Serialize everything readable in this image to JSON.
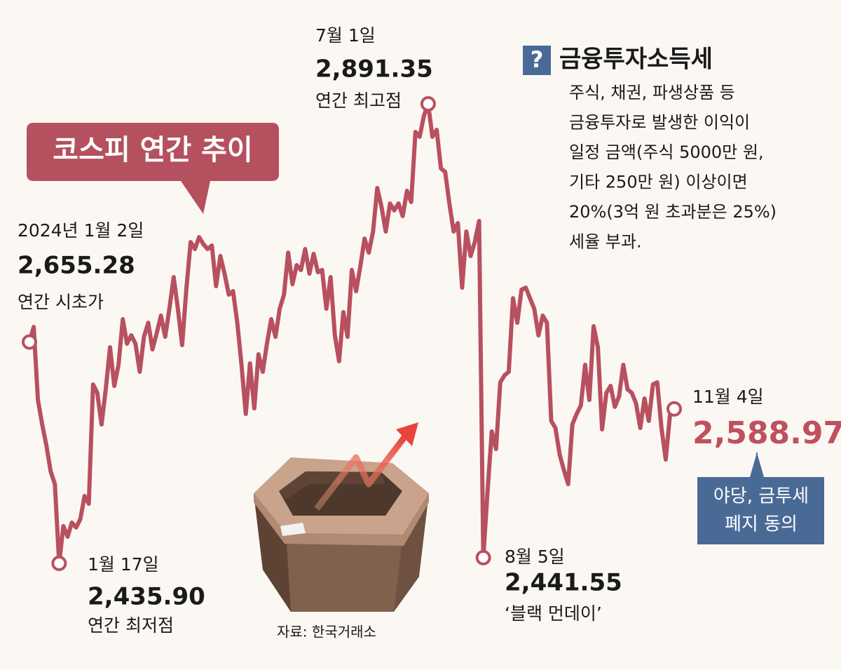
{
  "chart_data": {
    "type": "line",
    "title": "코스피 연간 추이",
    "color": "#b8505f",
    "values": [
      2655.28,
      2670.2,
      2597.9,
      2573.6,
      2552.7,
      2527.0,
      2514.5,
      2435.9,
      2472.8,
      2462.3,
      2476.3,
      2471.4,
      2479.7,
      2502.7,
      2495.0,
      2613.2,
      2604.9,
      2573.6,
      2608.4,
      2650.1,
      2611.8,
      2632.7,
      2677.9,
      2653.6,
      2661.9,
      2653.6,
      2625.8,
      2660.5,
      2674.4,
      2648.0,
      2664.0,
      2681.4,
      2660.5,
      2688.3,
      2719.6,
      2688.3,
      2652.2,
      2707.8,
      2754.3,
      2747.4,
      2759.2,
      2752.3,
      2747.4,
      2750.9,
      2710.6,
      2740.5,
      2723.1,
      2702.2,
      2705.7,
      2674.4,
      2632.7,
      2584.0,
      2634.1,
      2589.6,
      2643.1,
      2625.8,
      2653.6,
      2677.9,
      2660.5,
      2688.3,
      2702.2,
      2743.9,
      2712.6,
      2731.4,
      2726.6,
      2747.4,
      2723.1,
      2742.6,
      2724.5,
      2726.6,
      2688.3,
      2719.6,
      2661.9,
      2636.2,
      2684.9,
      2660.5,
      2726.6,
      2705.7,
      2730.0,
      2757.8,
      2743.9,
      2764.8,
      2807.9,
      2789.1,
      2764.8,
      2792.6,
      2785.7,
      2792.6,
      2780.1,
      2805.1,
      2794.0,
      2863.5,
      2858.7,
      2879.5,
      2891.35,
      2858.7,
      2865.6,
      2827.4,
      2823.9,
      2792.6,
      2764.8,
      2773.1,
      2709.2,
      2764.8,
      2740.5,
      2754.4,
      2775.2,
      2441.55,
      2507.6,
      2566.6,
      2549.3,
      2615.3,
      2622.3,
      2625.8,
      2698.7,
      2674.4,
      2707.1,
      2709.2,
      2698.7,
      2688.3,
      2661.9,
      2681.4,
      2674.4,
      2577.1,
      2570.1,
      2543.7,
      2528.4,
      2514.5,
      2573.6,
      2584.0,
      2592.4,
      2632.7,
      2597.9,
      2670.9,
      2650.1,
      2568.7,
      2604.9,
      2611.8,
      2591.0,
      2601.4,
      2632.7,
      2608.4,
      2604.9,
      2594.5,
      2570.1,
      2599.3,
      2577.1,
      2613.2,
      2615.3,
      2570.1,
      2538.8,
      2582.6,
      2588.97
    ],
    "annotations": [
      {
        "date": "2024년 1월 2일",
        "value": 2655.28,
        "value_label": "2,655.28",
        "note": "연간 시초가"
      },
      {
        "date": "1월 17일",
        "value": 2435.9,
        "value_label": "2,435.90",
        "note": "연간 최저점"
      },
      {
        "date": "7월 1일",
        "value": 2891.35,
        "value_label": "2,891.35",
        "note": "연간 최고점"
      },
      {
        "date": "8월 5일",
        "value": 2441.55,
        "value_label": "2,441.55",
        "note": "‘블랙 먼데이’"
      },
      {
        "date": "11월 4일",
        "value": 2588.97,
        "value_label": "2,588.97"
      }
    ]
  },
  "sidebar": {
    "icon": "?",
    "title": "금융투자소득세",
    "lines": [
      "주식, 채권, 파생상품 등",
      "금융투자로 발생한 이익이",
      "일정 금액(주식 5000만 원,",
      "기타 250만 원) 이상이면",
      "20%(3억 원 초과분은 25%)",
      "세율 부과."
    ]
  },
  "callout": [
    "야당, 금투세",
    "폐지 동의"
  ],
  "source": "자료: 한국거래소"
}
